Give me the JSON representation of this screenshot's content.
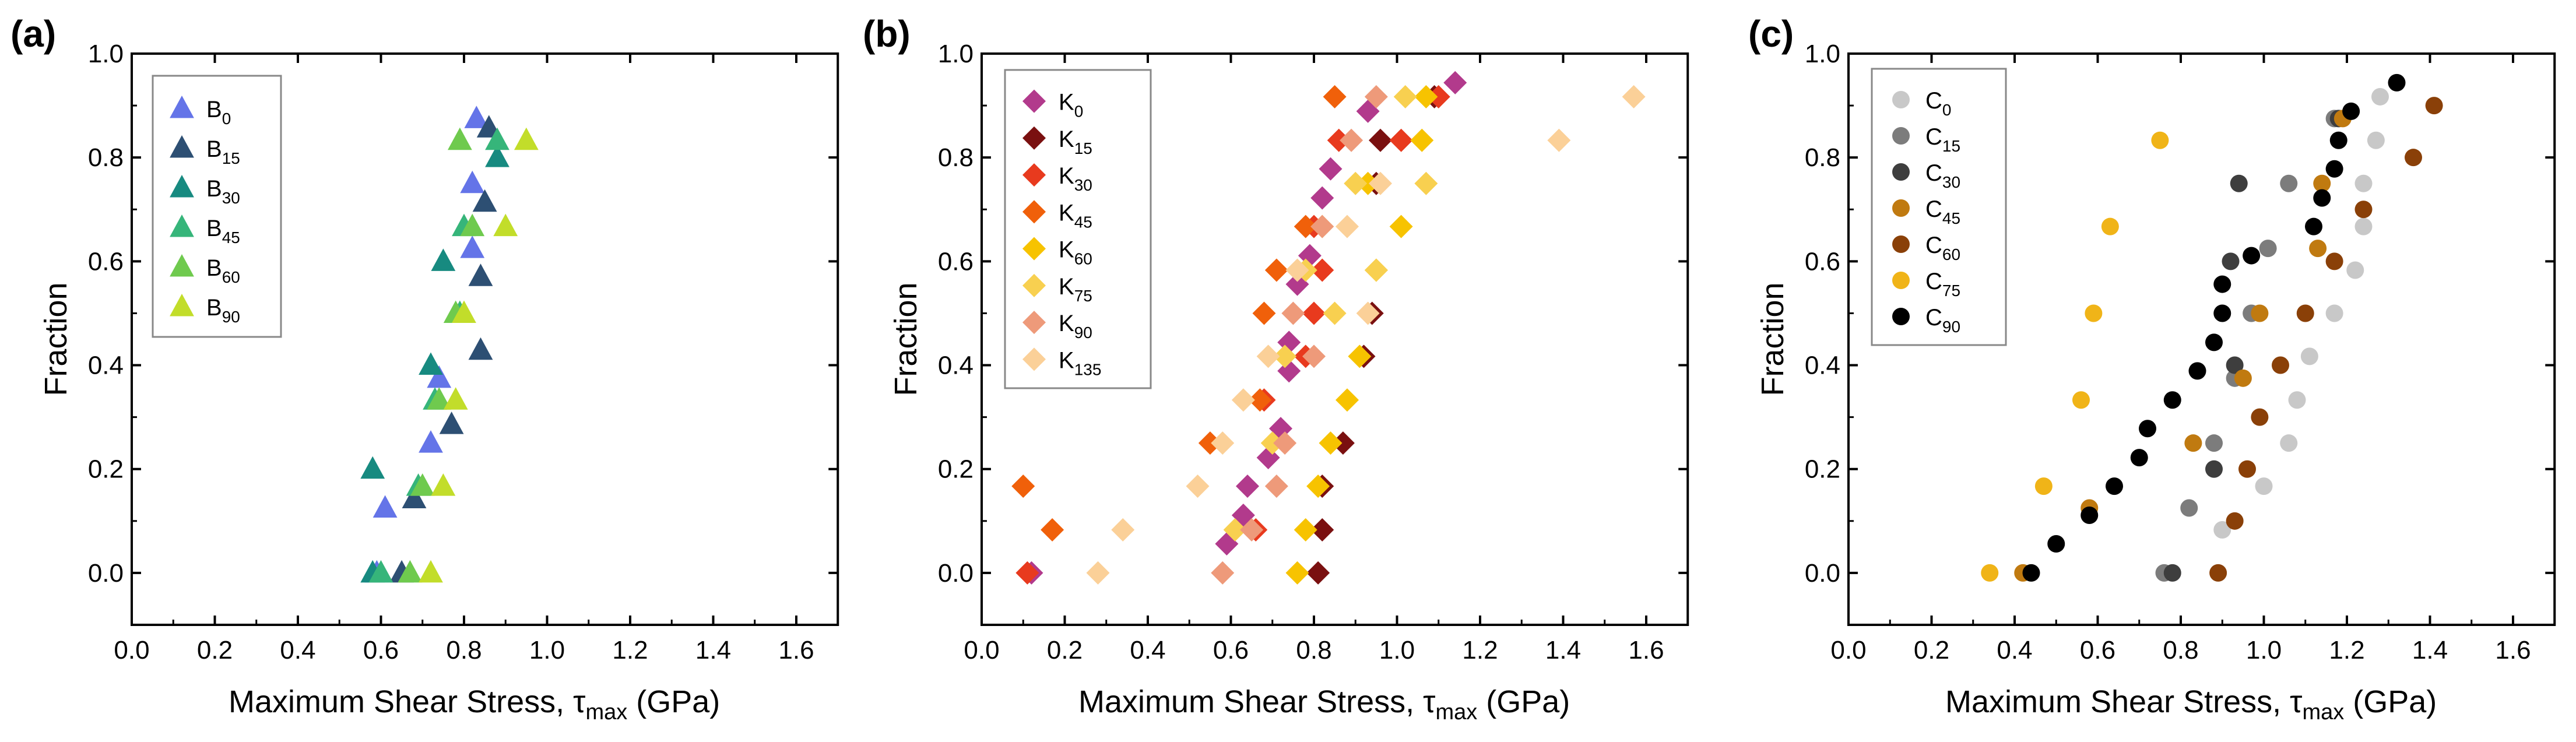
{
  "chart_data": [
    {
      "type": "scatter",
      "panel_label": "(a)",
      "marker": "triangle",
      "xlabel": {
        "prefix": "Maximum Shear Stress, ",
        "symbol": "τ",
        "subscript": "max",
        "suffix": " (GPa)"
      },
      "ylabel": "Fraction",
      "xlim": [
        0.0,
        1.7
      ],
      "ylim": [
        -0.1,
        1.0
      ],
      "xticks": [
        "0.0",
        "0.2",
        "0.4",
        "0.6",
        "0.8",
        "1.0",
        "1.2",
        "1.4",
        "1.6"
      ],
      "yticks": [
        "0.0",
        "0.2",
        "0.4",
        "0.6",
        "0.8",
        "1.0"
      ],
      "legend_position": "top-left",
      "series": [
        {
          "name": "B",
          "sub": "0",
          "color": "#6474e8",
          "points": [
            [
              0.59,
              0.0
            ],
            [
              0.61,
              0.125
            ],
            [
              0.72,
              0.25
            ],
            [
              0.74,
              0.375
            ],
            [
              0.82,
              0.625
            ],
            [
              0.82,
              0.75
            ],
            [
              0.83,
              0.875
            ]
          ]
        },
        {
          "name": "B",
          "sub": "15",
          "color": "#2d4f73",
          "points": [
            [
              0.65,
              0.0
            ],
            [
              0.68,
              0.143
            ],
            [
              0.77,
              0.286
            ],
            [
              0.84,
              0.429
            ],
            [
              0.84,
              0.571
            ],
            [
              0.85,
              0.714
            ],
            [
              0.86,
              0.857
            ]
          ]
        },
        {
          "name": "B",
          "sub": "30",
          "color": "#178a80",
          "points": [
            [
              0.58,
              0.0
            ],
            [
              0.58,
              0.2
            ],
            [
              0.72,
              0.4
            ],
            [
              0.75,
              0.6
            ],
            [
              0.88,
              0.8
            ]
          ]
        },
        {
          "name": "B",
          "sub": "45",
          "color": "#36b57a",
          "points": [
            [
              0.6,
              0.0
            ],
            [
              0.69,
              0.167
            ],
            [
              0.73,
              0.333
            ],
            [
              0.79,
              0.5
            ],
            [
              0.8,
              0.667
            ],
            [
              0.88,
              0.833
            ]
          ]
        },
        {
          "name": "B",
          "sub": "60",
          "color": "#6fca4e",
          "points": [
            [
              0.67,
              0.0
            ],
            [
              0.7,
              0.167
            ],
            [
              0.74,
              0.333
            ],
            [
              0.78,
              0.5
            ],
            [
              0.82,
              0.667
            ],
            [
              0.79,
              0.833
            ]
          ]
        },
        {
          "name": "B",
          "sub": "90",
          "color": "#c2dd2a",
          "points": [
            [
              0.72,
              0.0
            ],
            [
              0.75,
              0.167
            ],
            [
              0.78,
              0.333
            ],
            [
              0.8,
              0.5
            ],
            [
              0.9,
              0.667
            ],
            [
              0.95,
              0.833
            ]
          ]
        }
      ]
    },
    {
      "type": "scatter",
      "panel_label": "(b)",
      "marker": "diamond",
      "xlabel": {
        "prefix": "Maximum Shear Stress, ",
        "symbol": "τ",
        "subscript": "max",
        "suffix": " (GPa)"
      },
      "ylabel": "Fraction",
      "xlim": [
        0.0,
        1.7
      ],
      "ylim": [
        -0.1,
        1.0
      ],
      "xticks": [
        "0.0",
        "0.2",
        "0.4",
        "0.6",
        "0.8",
        "1.0",
        "1.2",
        "1.4",
        "1.6"
      ],
      "yticks": [
        "0.0",
        "0.2",
        "0.4",
        "0.6",
        "0.8",
        "1.0"
      ],
      "legend_position": "top-left",
      "series": [
        {
          "name": "K",
          "sub": "0",
          "color": "#b23a8c",
          "points": [
            [
              0.12,
              0.0
            ],
            [
              0.59,
              0.056
            ],
            [
              0.63,
              0.111
            ],
            [
              0.64,
              0.167
            ],
            [
              0.69,
              0.222
            ],
            [
              0.72,
              0.278
            ],
            [
              0.74,
              0.389
            ],
            [
              0.74,
              0.444
            ],
            [
              0.76,
              0.556
            ],
            [
              0.79,
              0.611
            ],
            [
              0.82,
              0.722
            ],
            [
              0.84,
              0.778
            ],
            [
              0.93,
              0.889
            ],
            [
              1.14,
              0.944
            ]
          ]
        },
        {
          "name": "K",
          "sub": "15",
          "color": "#7a1010",
          "points": [
            [
              0.81,
              0.0
            ],
            [
              0.82,
              0.083
            ],
            [
              0.82,
              0.167
            ],
            [
              0.87,
              0.25
            ],
            [
              0.92,
              0.417
            ],
            [
              0.94,
              0.5
            ],
            [
              0.95,
              0.75
            ],
            [
              0.96,
              0.833
            ],
            [
              1.09,
              0.917
            ]
          ]
        },
        {
          "name": "K",
          "sub": "30",
          "color": "#e83a1e",
          "points": [
            [
              0.11,
              0.0
            ],
            [
              0.66,
              0.083
            ],
            [
              0.68,
              0.333
            ],
            [
              0.78,
              0.417
            ],
            [
              0.8,
              0.5
            ],
            [
              0.82,
              0.583
            ],
            [
              0.8,
              0.667
            ],
            [
              0.86,
              0.833
            ],
            [
              1.01,
              0.833
            ],
            [
              1.1,
              0.917
            ]
          ]
        },
        {
          "name": "K",
          "sub": "45",
          "color": "#f0600a",
          "points": [
            [
              0.1,
              0.167
            ],
            [
              0.17,
              0.083
            ],
            [
              0.55,
              0.25
            ],
            [
              0.67,
              0.333
            ],
            [
              0.68,
              0.5
            ],
            [
              0.71,
              0.583
            ],
            [
              0.78,
              0.667
            ],
            [
              0.85,
              0.917
            ]
          ]
        },
        {
          "name": "K",
          "sub": "60",
          "color": "#f7c300",
          "points": [
            [
              0.76,
              0.0
            ],
            [
              0.78,
              0.083
            ],
            [
              0.81,
              0.167
            ],
            [
              0.84,
              0.25
            ],
            [
              0.88,
              0.333
            ],
            [
              0.91,
              0.417
            ],
            [
              0.95,
              0.583
            ],
            [
              0.93,
              0.75
            ],
            [
              1.01,
              0.667
            ],
            [
              1.06,
              0.833
            ],
            [
              1.07,
              0.917
            ]
          ]
        },
        {
          "name": "K",
          "sub": "75",
          "color": "#f8d050",
          "points": [
            [
              0.61,
              0.083
            ],
            [
              0.7,
              0.25
            ],
            [
              0.73,
              0.417
            ],
            [
              0.78,
              0.583
            ],
            [
              0.82,
              0.667
            ],
            [
              0.85,
              0.5
            ],
            [
              0.9,
              0.75
            ],
            [
              0.95,
              0.583
            ],
            [
              1.07,
              0.75
            ],
            [
              1.02,
              0.917
            ]
          ]
        },
        {
          "name": "K",
          "sub": "90",
          "color": "#ee9a7a",
          "points": [
            [
              0.58,
              0.0
            ],
            [
              0.65,
              0.083
            ],
            [
              0.71,
              0.167
            ],
            [
              0.73,
              0.25
            ],
            [
              0.75,
              0.5
            ],
            [
              0.8,
              0.417
            ],
            [
              0.82,
              0.667
            ],
            [
              0.89,
              0.833
            ],
            [
              0.95,
              0.917
            ]
          ]
        },
        {
          "name": "K",
          "sub": "135",
          "color": "#fbd098",
          "points": [
            [
              0.28,
              0.0
            ],
            [
              0.34,
              0.083
            ],
            [
              0.52,
              0.167
            ],
            [
              0.58,
              0.25
            ],
            [
              0.63,
              0.333
            ],
            [
              0.69,
              0.417
            ],
            [
              0.76,
              0.583
            ],
            [
              0.88,
              0.667
            ],
            [
              0.93,
              0.5
            ],
            [
              0.96,
              0.75
            ],
            [
              1.39,
              0.833
            ],
            [
              1.57,
              0.917
            ]
          ]
        }
      ]
    },
    {
      "type": "scatter",
      "panel_label": "(c)",
      "marker": "circle",
      "xlabel": {
        "prefix": "Maximum Shear Stress, ",
        "symbol": "τ",
        "subscript": "max",
        "suffix": " (GPa)"
      },
      "ylabel": "Fraction",
      "xlim": [
        0.0,
        1.7
      ],
      "ylim": [
        -0.1,
        1.0
      ],
      "xticks": [
        "0.0",
        "0.2",
        "0.4",
        "0.6",
        "0.8",
        "1.0",
        "1.2",
        "1.4",
        "1.6"
      ],
      "yticks": [
        "0.0",
        "0.2",
        "0.4",
        "0.6",
        "0.8",
        "1.0"
      ],
      "legend_position": "top-left",
      "series": [
        {
          "name": "C",
          "sub": "0",
          "color": "#c8c8c8",
          "points": [
            [
              0.9,
              0.083
            ],
            [
              1.0,
              0.167
            ],
            [
              1.06,
              0.25
            ],
            [
              1.08,
              0.333
            ],
            [
              1.11,
              0.417
            ],
            [
              1.17,
              0.5
            ],
            [
              1.22,
              0.583
            ],
            [
              1.24,
              0.667
            ],
            [
              1.24,
              0.75
            ],
            [
              1.27,
              0.833
            ],
            [
              1.28,
              0.917
            ]
          ]
        },
        {
          "name": "C",
          "sub": "15",
          "color": "#7c7c7c",
          "points": [
            [
              0.76,
              0.0
            ],
            [
              0.82,
              0.125
            ],
            [
              0.88,
              0.25
            ],
            [
              0.93,
              0.375
            ],
            [
              0.97,
              0.5
            ],
            [
              1.01,
              0.625
            ],
            [
              1.06,
              0.75
            ],
            [
              1.17,
              0.875
            ]
          ]
        },
        {
          "name": "C",
          "sub": "30",
          "color": "#3e3e3e",
          "points": [
            [
              0.78,
              0.0
            ],
            [
              0.88,
              0.2
            ],
            [
              0.93,
              0.4
            ],
            [
              0.92,
              0.6
            ],
            [
              0.94,
              0.75
            ],
            [
              1.18,
              0.875
            ]
          ]
        },
        {
          "name": "C",
          "sub": "45",
          "color": "#c07a10",
          "points": [
            [
              0.42,
              0.0
            ],
            [
              0.58,
              0.125
            ],
            [
              0.83,
              0.25
            ],
            [
              0.95,
              0.375
            ],
            [
              0.99,
              0.5
            ],
            [
              1.13,
              0.625
            ],
            [
              1.14,
              0.75
            ],
            [
              1.19,
              0.875
            ]
          ]
        },
        {
          "name": "C",
          "sub": "60",
          "color": "#8a4008",
          "points": [
            [
              0.89,
              0.0
            ],
            [
              0.93,
              0.1
            ],
            [
              0.96,
              0.2
            ],
            [
              0.99,
              0.3
            ],
            [
              1.04,
              0.4
            ],
            [
              1.1,
              0.5
            ],
            [
              1.17,
              0.6
            ],
            [
              1.24,
              0.7
            ],
            [
              1.36,
              0.8
            ],
            [
              1.41,
              0.9
            ]
          ]
        },
        {
          "name": "C",
          "sub": "75",
          "color": "#f0b418",
          "points": [
            [
              0.34,
              0.0
            ],
            [
              0.47,
              0.167
            ],
            [
              0.56,
              0.333
            ],
            [
              0.59,
              0.5
            ],
            [
              0.63,
              0.667
            ],
            [
              0.75,
              0.833
            ]
          ]
        },
        {
          "name": "C",
          "sub": "90",
          "color": "#000000",
          "points": [
            [
              0.44,
              0.0
            ],
            [
              0.5,
              0.056
            ],
            [
              0.58,
              0.111
            ],
            [
              0.64,
              0.167
            ],
            [
              0.7,
              0.222
            ],
            [
              0.72,
              0.278
            ],
            [
              0.78,
              0.333
            ],
            [
              0.84,
              0.389
            ],
            [
              0.88,
              0.444
            ],
            [
              0.9,
              0.5
            ],
            [
              0.9,
              0.556
            ],
            [
              0.97,
              0.611
            ],
            [
              1.12,
              0.667
            ],
            [
              1.14,
              0.722
            ],
            [
              1.17,
              0.778
            ],
            [
              1.18,
              0.833
            ],
            [
              1.21,
              0.889
            ],
            [
              1.32,
              0.944
            ]
          ]
        }
      ]
    }
  ]
}
